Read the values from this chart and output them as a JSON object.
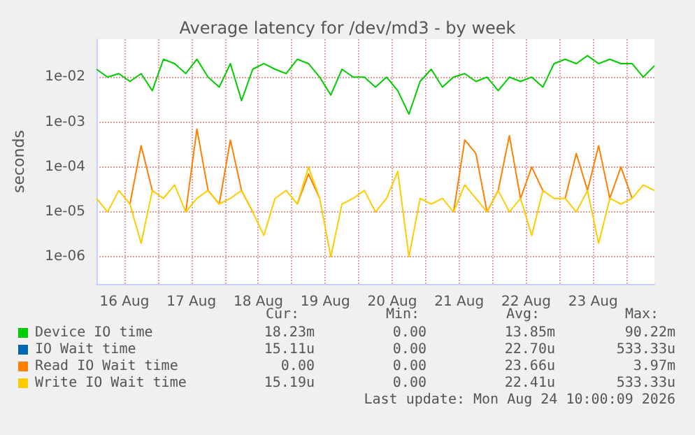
{
  "chart_data": {
    "type": "line",
    "title": "Average latency for /dev/md3 - by week",
    "ylabel": "seconds",
    "x": [
      "2026-08-16T02:00",
      "2026-08-16T06:00",
      "2026-08-16T10:00",
      "2026-08-16T14:00",
      "2026-08-16T18:00",
      "2026-08-16T22:00",
      "2026-08-17T02:00",
      "2026-08-17T06:00",
      "2026-08-17T10:00",
      "2026-08-17T14:00",
      "2026-08-17T18:00",
      "2026-08-17T22:00",
      "2026-08-18T02:00",
      "2026-08-18T06:00",
      "2026-08-18T10:00",
      "2026-08-18T14:00",
      "2026-08-18T18:00",
      "2026-08-18T22:00",
      "2026-08-19T02:00",
      "2026-08-19T06:00",
      "2026-08-19T10:00",
      "2026-08-19T14:00",
      "2026-08-19T18:00",
      "2026-08-19T22:00",
      "2026-08-20T02:00",
      "2026-08-20T06:00",
      "2026-08-20T10:00",
      "2026-08-20T14:00",
      "2026-08-20T18:00",
      "2026-08-20T22:00",
      "2026-08-21T02:00",
      "2026-08-21T06:00",
      "2026-08-21T10:00",
      "2026-08-21T14:00",
      "2026-08-21T18:00",
      "2026-08-21T22:00",
      "2026-08-22T02:00",
      "2026-08-22T06:00",
      "2026-08-22T10:00",
      "2026-08-22T14:00",
      "2026-08-22T18:00",
      "2026-08-22T22:00",
      "2026-08-23T02:00",
      "2026-08-23T06:00",
      "2026-08-23T10:00",
      "2026-08-23T14:00",
      "2026-08-23T18:00",
      "2026-08-23T22:00",
      "2026-08-24T02:00",
      "2026-08-24T06:00",
      "2026-08-24T10:00"
    ],
    "series": [
      {
        "name": "Device IO time",
        "color": "#00cc00",
        "values": [
          0.015,
          0.01,
          0.012,
          0.008,
          0.012,
          0.005,
          0.025,
          0.02,
          0.012,
          0.025,
          0.01,
          0.006,
          0.02,
          0.003,
          0.015,
          0.02,
          0.015,
          0.012,
          0.025,
          0.02,
          0.01,
          0.004,
          0.015,
          0.01,
          0.01,
          0.006,
          0.01,
          0.005,
          0.0015,
          0.008,
          0.015,
          0.006,
          0.01,
          0.012,
          0.008,
          0.01,
          0.005,
          0.01,
          0.008,
          0.01,
          0.006,
          0.02,
          0.025,
          0.02,
          0.03,
          0.02,
          0.025,
          0.02,
          0.02,
          0.01,
          0.018
        ]
      },
      {
        "name": "IO Wait time",
        "color": "#0066b3",
        "values": [
          null,
          null,
          null,
          null,
          null,
          null,
          null,
          null,
          null,
          null,
          null,
          null,
          null,
          null,
          null,
          null,
          null,
          null,
          null,
          null,
          null,
          null,
          null,
          null,
          null,
          null,
          null,
          null,
          null,
          null,
          null,
          null,
          null,
          null,
          null,
          null,
          null,
          null,
          null,
          null,
          null,
          null,
          null,
          null,
          null,
          null,
          null,
          null,
          null,
          null,
          null
        ]
      },
      {
        "name": "Read IO Wait time",
        "color": "#ff8000",
        "values": [
          null,
          null,
          null,
          1.5e-05,
          0.0003,
          3e-05,
          null,
          null,
          1e-05,
          0.0007,
          3e-05,
          1.5e-05,
          0.0004,
          3e-05,
          1e-05,
          null,
          null,
          null,
          1.5e-05,
          7e-05,
          2e-05,
          null,
          null,
          null,
          null,
          null,
          null,
          null,
          null,
          null,
          null,
          null,
          1e-05,
          0.0004,
          0.0002,
          1e-05,
          3e-05,
          0.0005,
          2e-05,
          0.0001,
          3e-05,
          null,
          2e-05,
          0.0002,
          3e-05,
          0.0003,
          2e-05,
          0.0001,
          2e-05,
          null,
          null
        ]
      },
      {
        "name": "Write IO Wait time",
        "color": "#ffcc00",
        "values": [
          2e-05,
          1e-05,
          3e-05,
          1.5e-05,
          2e-06,
          3e-05,
          2e-05,
          4e-05,
          1e-05,
          2e-05,
          3e-05,
          1.5e-05,
          2e-05,
          3e-05,
          1e-05,
          3e-06,
          2e-05,
          3e-05,
          1.5e-05,
          0.0001,
          2e-05,
          1e-06,
          1.5e-05,
          2e-05,
          3e-05,
          1e-05,
          2e-05,
          8e-05,
          1e-06,
          2e-05,
          1.5e-05,
          2e-05,
          1e-05,
          4e-05,
          2e-05,
          1e-05,
          3e-05,
          1e-05,
          2e-05,
          3e-06,
          3e-05,
          2e-05,
          2e-05,
          1e-05,
          3e-05,
          2e-06,
          2e-05,
          1.5e-05,
          2e-05,
          4e-05,
          3e-05
        ]
      }
    ],
    "log": "y",
    "grid": true,
    "legend": "bottom left",
    "marker": "none",
    "line_style": "solid",
    "xlim": [
      "2026-08-16T02:00",
      "2026-08-24T10:00"
    ],
    "xticks": [
      {
        "value": "2026-08-16T12:00",
        "label": "16 Aug"
      },
      {
        "value": "2026-08-17T00:00",
        "label": null
      },
      {
        "value": "2026-08-17T12:00",
        "label": "17 Aug"
      },
      {
        "value": "2026-08-18T00:00",
        "label": null
      },
      {
        "value": "2026-08-18T12:00",
        "label": "18 Aug"
      },
      {
        "value": "2026-08-19T00:00",
        "label": null
      },
      {
        "value": "2026-08-19T12:00",
        "label": "19 Aug"
      },
      {
        "value": "2026-08-20T00:00",
        "label": null
      },
      {
        "value": "2026-08-20T12:00",
        "label": "20 Aug"
      },
      {
        "value": "2026-08-21T00:00",
        "label": null
      },
      {
        "value": "2026-08-21T12:00",
        "label": "21 Aug"
      },
      {
        "value": "2026-08-22T00:00",
        "label": null
      },
      {
        "value": "2026-08-22T12:00",
        "label": "22 Aug"
      },
      {
        "value": "2026-08-23T00:00",
        "label": null
      },
      {
        "value": "2026-08-23T12:00",
        "label": "23 Aug"
      },
      {
        "value": "2026-08-24T00:00",
        "label": null
      }
    ],
    "ylim": [
      2.5e-07,
      0.07
    ],
    "yticks": [
      {
        "value": 1e-06,
        "label": "1e-06"
      },
      {
        "value": 1e-05,
        "label": "1e-05"
      },
      {
        "value": 0.0001,
        "label": "1e-04"
      },
      {
        "value": 0.001,
        "label": "1e-03"
      },
      {
        "value": 0.01,
        "label": "1e-02"
      }
    ],
    "annotations": [
      "Cur:",
      "Min:",
      "Avg:",
      "Max:",
      "18.23m",
      "0.00",
      "13.85m",
      "90.22m",
      "15.11u",
      "0.00",
      "22.70u",
      "533.33u",
      "0.00",
      "0.00",
      "23.66u",
      "3.97m",
      "15.19u",
      "0.00",
      "22.41u",
      "533.33u",
      "Last update: Mon Aug 24 10:00:09 2026"
    ]
  }
}
